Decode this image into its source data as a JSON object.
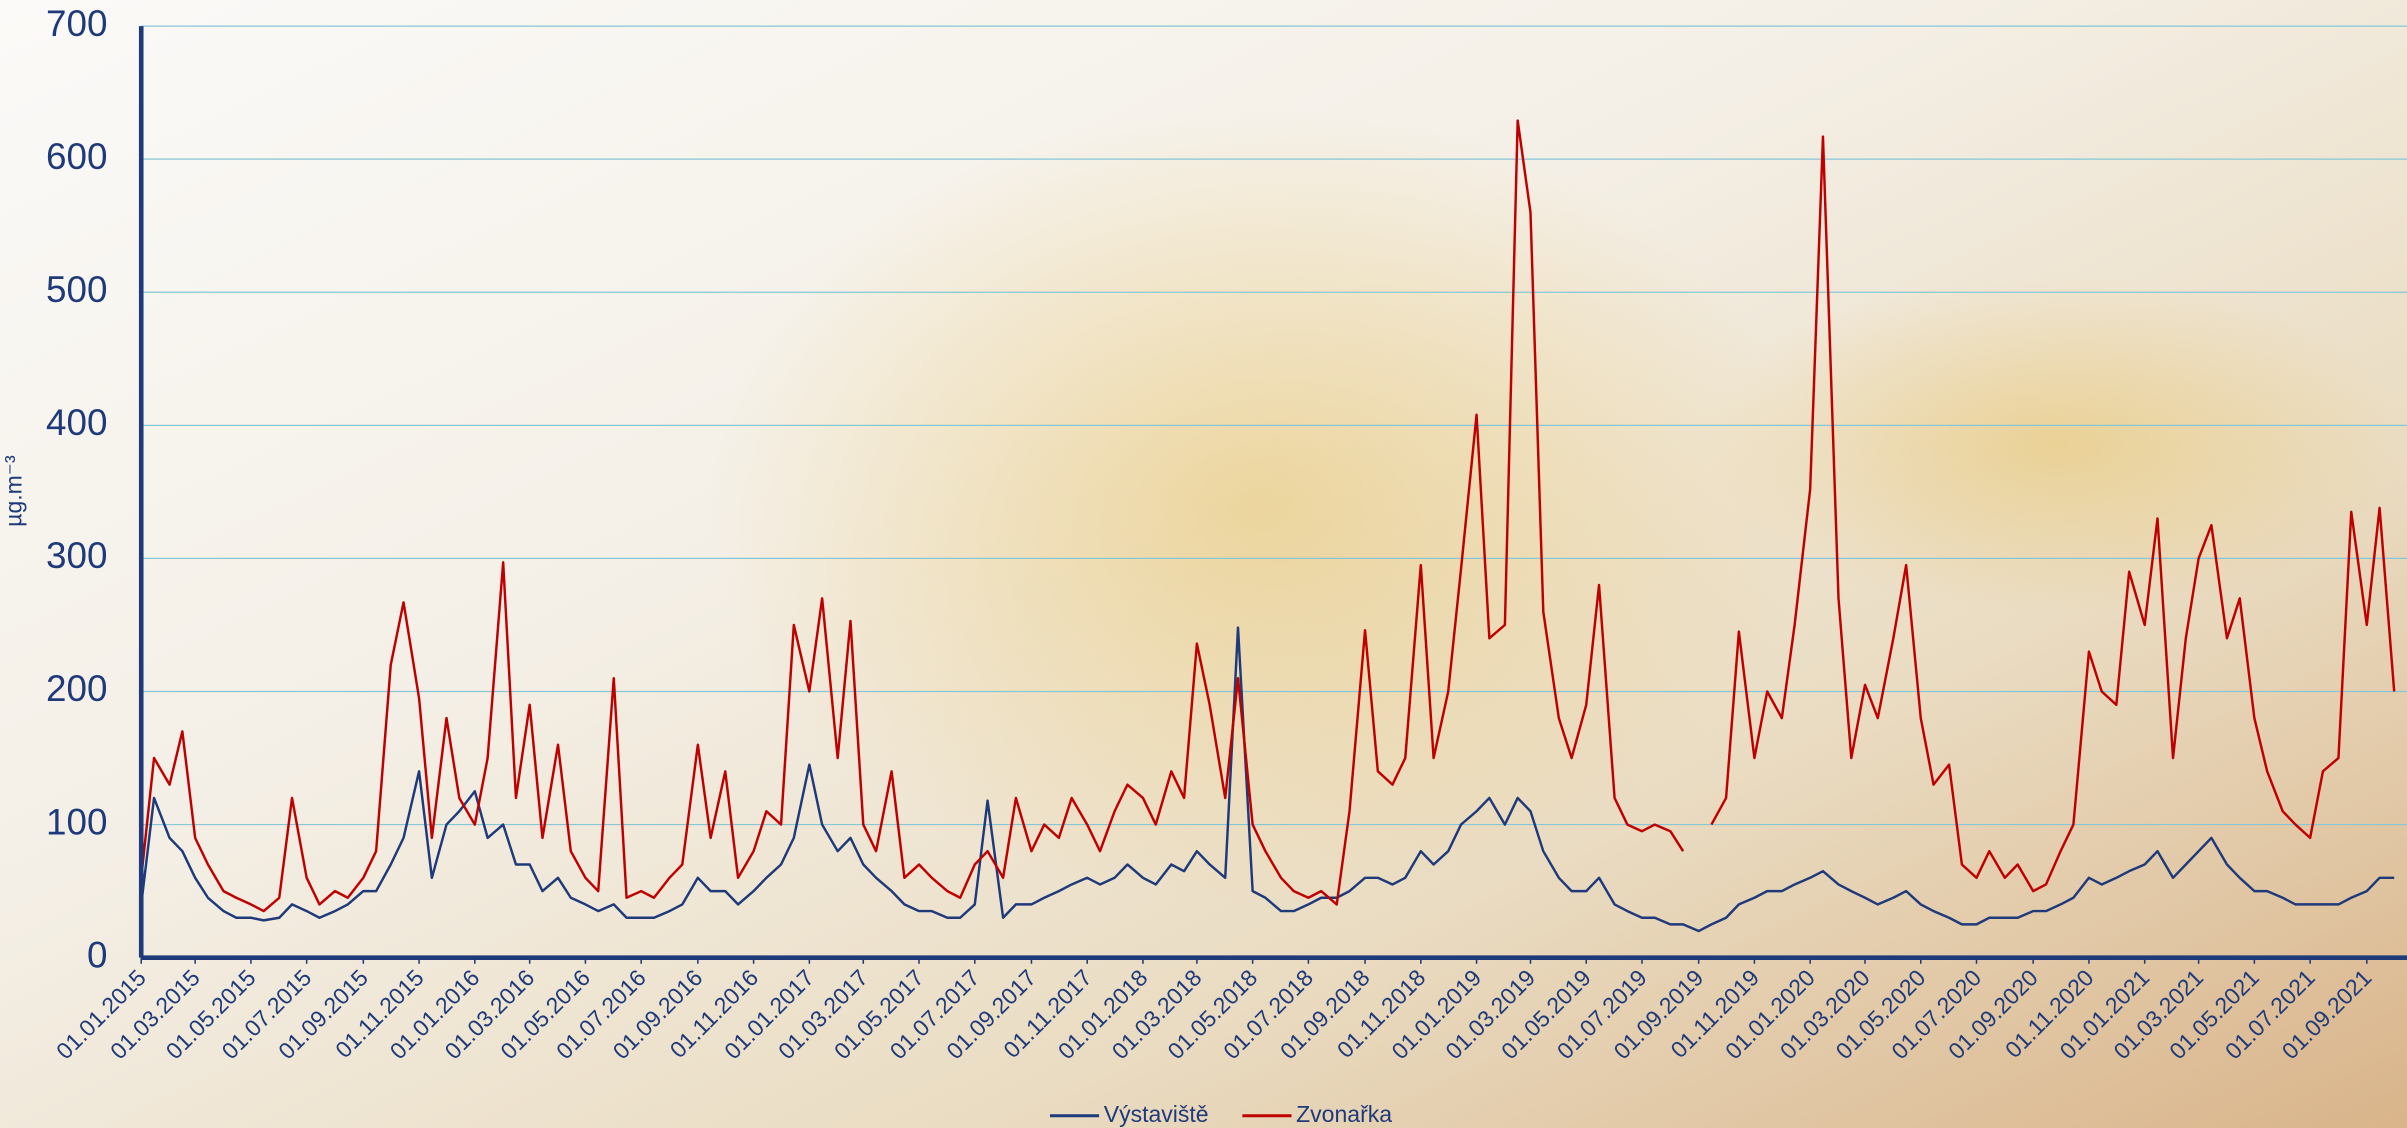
{
  "chart_data": {
    "type": "line",
    "y_label": "µg.m⁻³",
    "ylim": [
      0,
      700
    ],
    "yticks": [
      0,
      100,
      200,
      300,
      400,
      500,
      600,
      700
    ],
    "grid": true,
    "xlim": [
      "01.01.2015",
      "15.10.2021"
    ],
    "xticks": [
      "01.01.2015",
      "01.03.2015",
      "01.05.2015",
      "01.07.2015",
      "01.09.2015",
      "01.11.2015",
      "01.01.2016",
      "01.03.2016",
      "01.05.2016",
      "01.07.2016",
      "01.09.2016",
      "01.11.2016",
      "01.01.2017",
      "01.03.2017",
      "01.05.2017",
      "01.07.2017",
      "01.09.2017",
      "01.11.2017",
      "01.01.2018",
      "01.03.2018",
      "01.05.2018",
      "01.07.2018",
      "01.09.2018",
      "01.11.2018",
      "01.01.2019",
      "01.03.2019",
      "01.05.2019",
      "01.07.2019",
      "01.09.2019",
      "01.11.2019",
      "01.01.2020",
      "01.03.2020",
      "01.05.2020",
      "01.07.2020",
      "01.09.2020",
      "01.11.2020",
      "01.01.2021",
      "01.03.2021",
      "01.05.2021",
      "01.07.2021",
      "01.09.2021"
    ],
    "x": [
      "01.01.2015",
      "15.01.2015",
      "01.02.2015",
      "15.02.2015",
      "01.03.2015",
      "15.03.2015",
      "01.04.2015",
      "15.04.2015",
      "01.05.2015",
      "15.05.2015",
      "01.06.2015",
      "15.06.2015",
      "01.07.2015",
      "15.07.2015",
      "01.08.2015",
      "15.08.2015",
      "01.09.2015",
      "15.09.2015",
      "01.10.2015",
      "15.10.2015",
      "01.11.2015",
      "15.11.2015",
      "01.12.2015",
      "15.12.2015",
      "01.01.2016",
      "15.01.2016",
      "01.02.2016",
      "15.02.2016",
      "01.03.2016",
      "15.03.2016",
      "01.04.2016",
      "15.04.2016",
      "01.05.2016",
      "15.05.2016",
      "01.06.2016",
      "15.06.2016",
      "01.07.2016",
      "15.07.2016",
      "01.08.2016",
      "15.08.2016",
      "01.09.2016",
      "15.09.2016",
      "01.10.2016",
      "15.10.2016",
      "01.11.2016",
      "15.11.2016",
      "01.12.2016",
      "15.12.2016",
      "01.01.2017",
      "15.01.2017",
      "01.02.2017",
      "15.02.2017",
      "01.03.2017",
      "15.03.2017",
      "01.04.2017",
      "15.04.2017",
      "01.05.2017",
      "15.05.2017",
      "01.06.2017",
      "15.06.2017",
      "01.07.2017",
      "15.07.2017",
      "01.08.2017",
      "15.08.2017",
      "01.09.2017",
      "15.09.2017",
      "01.10.2017",
      "15.10.2017",
      "01.11.2017",
      "15.11.2017",
      "01.12.2017",
      "15.12.2017",
      "01.01.2018",
      "15.01.2018",
      "01.02.2018",
      "15.02.2018",
      "01.03.2018",
      "15.03.2018",
      "01.04.2018",
      "15.04.2018",
      "01.05.2018",
      "15.05.2018",
      "01.06.2018",
      "15.06.2018",
      "01.07.2018",
      "15.07.2018",
      "01.08.2018",
      "15.08.2018",
      "01.09.2018",
      "15.09.2018",
      "01.10.2018",
      "15.10.2018",
      "01.11.2018",
      "15.11.2018",
      "01.12.2018",
      "15.12.2018",
      "01.01.2019",
      "15.01.2019",
      "01.02.2019",
      "15.02.2019",
      "01.03.2019",
      "15.03.2019",
      "01.04.2019",
      "15.04.2019",
      "01.05.2019",
      "15.05.2019",
      "01.06.2019",
      "15.06.2019",
      "01.07.2019",
      "15.07.2019",
      "01.08.2019",
      "15.08.2019",
      "01.09.2019",
      "15.09.2019",
      "01.10.2019",
      "15.10.2019",
      "01.11.2019",
      "15.11.2019",
      "01.12.2019",
      "15.12.2019",
      "01.01.2020",
      "15.01.2020",
      "01.02.2020",
      "15.02.2020",
      "01.03.2020",
      "15.03.2020",
      "01.04.2020",
      "15.04.2020",
      "01.05.2020",
      "15.05.2020",
      "01.06.2020",
      "15.06.2020",
      "01.07.2020",
      "15.07.2020",
      "01.08.2020",
      "15.08.2020",
      "01.09.2020",
      "15.09.2020",
      "01.10.2020",
      "15.10.2020",
      "01.11.2020",
      "15.11.2020",
      "01.12.2020",
      "15.12.2020",
      "01.01.2021",
      "15.01.2021",
      "01.02.2021",
      "15.02.2021",
      "01.03.2021",
      "15.03.2021",
      "01.04.2021",
      "15.04.2021",
      "01.05.2021",
      "15.05.2021",
      "01.06.2021",
      "15.06.2021",
      "01.07.2021",
      "15.07.2021",
      "01.08.2021",
      "15.08.2021",
      "01.09.2021",
      "15.09.2021",
      "01.10.2021"
    ],
    "series": [
      {
        "name": "Výstaviště",
        "color": "#1f3a7a",
        "values": [
          40,
          120,
          90,
          80,
          60,
          45,
          35,
          30,
          30,
          28,
          30,
          40,
          35,
          30,
          35,
          40,
          50,
          50,
          70,
          90,
          140,
          60,
          100,
          110,
          125,
          90,
          100,
          70,
          70,
          50,
          60,
          45,
          40,
          35,
          40,
          30,
          30,
          30,
          35,
          40,
          60,
          50,
          50,
          40,
          50,
          60,
          70,
          90,
          145,
          100,
          80,
          90,
          70,
          60,
          50,
          40,
          35,
          35,
          30,
          30,
          40,
          118,
          30,
          40,
          40,
          45,
          50,
          55,
          60,
          55,
          60,
          70,
          60,
          55,
          70,
          65,
          80,
          70,
          60,
          248,
          50,
          45,
          35,
          35,
          40,
          45,
          45,
          50,
          60,
          60,
          55,
          60,
          80,
          70,
          80,
          100,
          110,
          120,
          100,
          120,
          110,
          80,
          60,
          50,
          50,
          60,
          40,
          35,
          30,
          30,
          25,
          25,
          20,
          25,
          30,
          40,
          45,
          50,
          50,
          55,
          60,
          65,
          55,
          50,
          45,
          40,
          45,
          50,
          40,
          35,
          30,
          25,
          25,
          30,
          30,
          30,
          35,
          35,
          40,
          45,
          60,
          55,
          60,
          65,
          70,
          80,
          60,
          70,
          80,
          90,
          70,
          60,
          50,
          50,
          45,
          40,
          40,
          40,
          40,
          45,
          50,
          60,
          60
        ]
      },
      {
        "name": "Zvonařka",
        "color": "#c00000",
        "values": [
          60,
          150,
          130,
          170,
          90,
          70,
          50,
          45,
          40,
          35,
          45,
          120,
          60,
          40,
          50,
          45,
          60,
          80,
          220,
          267,
          195,
          90,
          180,
          120,
          100,
          150,
          297,
          120,
          190,
          90,
          160,
          80,
          60,
          50,
          210,
          45,
          50,
          45,
          60,
          70,
          160,
          90,
          140,
          60,
          80,
          110,
          100,
          250,
          200,
          270,
          150,
          253,
          100,
          80,
          140,
          60,
          70,
          60,
          50,
          45,
          70,
          80,
          60,
          120,
          80,
          100,
          90,
          120,
          100,
          80,
          110,
          130,
          120,
          100,
          140,
          120,
          236,
          190,
          120,
          210,
          100,
          80,
          60,
          50,
          45,
          50,
          40,
          110,
          246,
          140,
          130,
          150,
          295,
          150,
          200,
          292,
          408,
          240,
          250,
          629,
          560,
          260,
          180,
          150,
          190,
          280,
          120,
          100,
          95,
          100,
          95,
          80,
          null,
          100,
          120,
          245,
          150,
          200,
          180,
          250,
          352,
          617,
          270,
          150,
          205,
          180,
          240,
          295,
          180,
          130,
          145,
          70,
          60,
          80,
          60,
          70,
          50,
          55,
          80,
          100,
          230,
          200,
          190,
          290,
          250,
          330,
          150,
          240,
          300,
          325,
          240,
          270,
          180,
          140,
          110,
          100,
          90,
          140,
          150,
          335,
          250,
          338,
          200
        ]
      }
    ],
    "legend": "bottom"
  }
}
